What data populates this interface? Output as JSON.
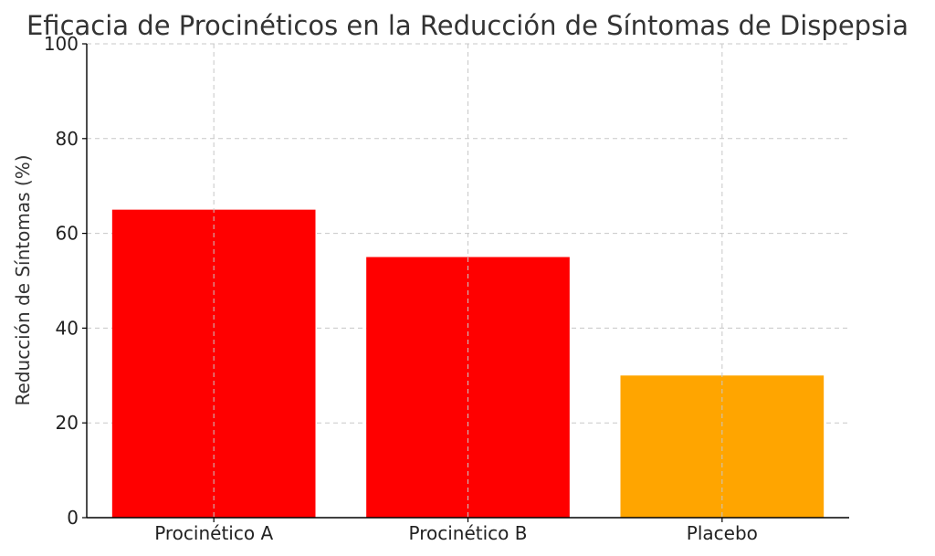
{
  "chart_data": {
    "type": "bar",
    "title": "Eficacia de Procinéticos en la Reducción de Síntomas de Dispepsia",
    "xlabel": "",
    "ylabel": "Reducción de Síntomas (%)",
    "categories": [
      "Procinético A",
      "Procinético B",
      "Placebo"
    ],
    "values": [
      65,
      55,
      30
    ],
    "colors": [
      "#ff0000",
      "#ff0000",
      "#ffa500"
    ],
    "ylim": [
      0,
      100
    ],
    "yticks": [
      0,
      20,
      40,
      60,
      80,
      100
    ],
    "grid": true,
    "legend": "none"
  }
}
